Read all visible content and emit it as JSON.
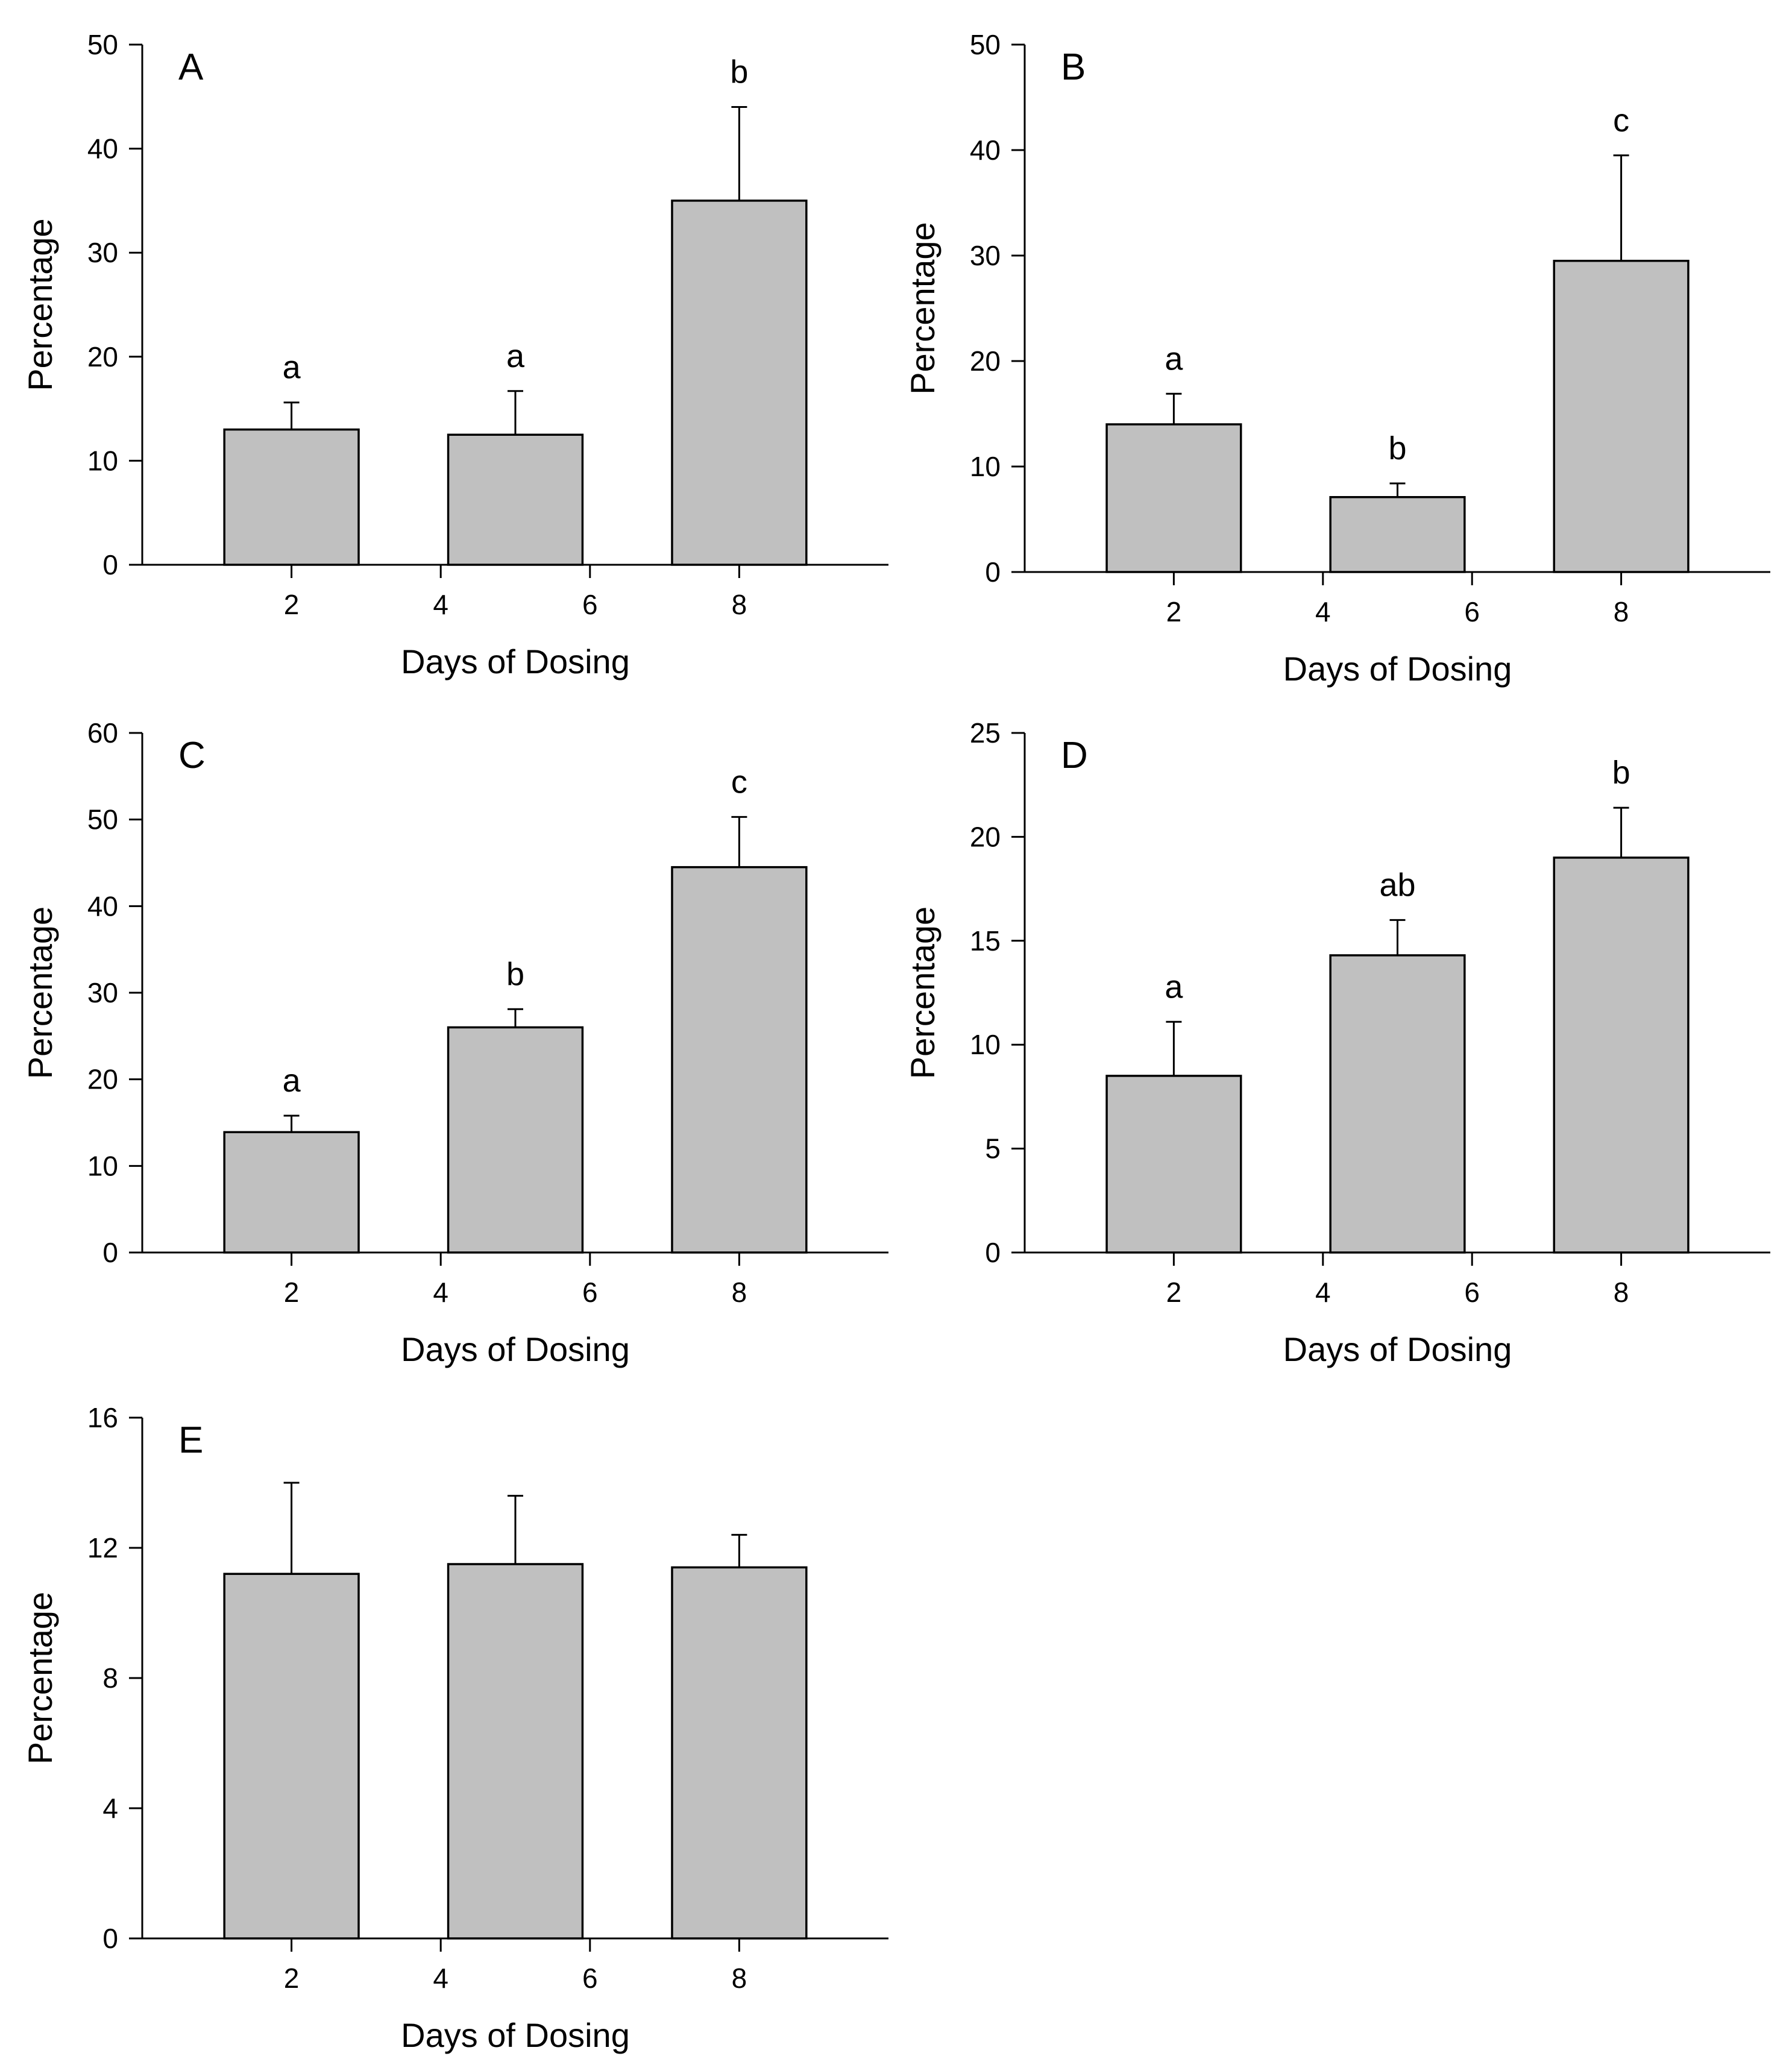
{
  "colors": {
    "bar_fill": "#c0c0c0",
    "stroke": "#000000",
    "background": "#ffffff"
  },
  "chart_data": [
    {
      "type": "bar",
      "panel_label": "A",
      "xlabel": "Days of Dosing",
      "ylabel": "Percentage",
      "xlim": [
        0,
        10
      ],
      "ylim": [
        0,
        50
      ],
      "xticks": [
        2,
        4,
        6,
        8
      ],
      "yticks": [
        0,
        10,
        20,
        30,
        40,
        50
      ],
      "bars": [
        {
          "x": 2,
          "value": 13,
          "error": 2.6,
          "letter": "a"
        },
        {
          "x": 5,
          "value": 12.5,
          "error": 4.2,
          "letter": "a"
        },
        {
          "x": 8,
          "value": 35,
          "error": 9,
          "letter": "b"
        }
      ]
    },
    {
      "type": "bar",
      "panel_label": "B",
      "xlabel": "Days of Dosing",
      "ylabel": "Percentage",
      "xlim": [
        0,
        10
      ],
      "ylim": [
        0,
        50
      ],
      "xticks": [
        2,
        4,
        6,
        8
      ],
      "yticks": [
        0,
        10,
        20,
        30,
        40,
        50
      ],
      "bars": [
        {
          "x": 2,
          "value": 14,
          "error": 2.9,
          "letter": "a"
        },
        {
          "x": 5,
          "value": 7.1,
          "error": 1.3,
          "letter": "b"
        },
        {
          "x": 8,
          "value": 29.5,
          "error": 10,
          "letter": "c"
        }
      ]
    },
    {
      "type": "bar",
      "panel_label": "C",
      "xlabel": "Days of Dosing",
      "ylabel": "Percentage",
      "xlim": [
        0,
        10
      ],
      "ylim": [
        0,
        60
      ],
      "xticks": [
        2,
        4,
        6,
        8
      ],
      "yticks": [
        0,
        10,
        20,
        30,
        40,
        50,
        60
      ],
      "bars": [
        {
          "x": 2,
          "value": 13.9,
          "error": 1.9,
          "letter": "a"
        },
        {
          "x": 5,
          "value": 26,
          "error": 2.1,
          "letter": "b"
        },
        {
          "x": 8,
          "value": 44.5,
          "error": 5.8,
          "letter": "c"
        }
      ]
    },
    {
      "type": "bar",
      "panel_label": "D",
      "xlabel": "Days of Dosing",
      "ylabel": "Percentage",
      "xlim": [
        0,
        10
      ],
      "ylim": [
        0,
        25
      ],
      "xticks": [
        2,
        4,
        6,
        8
      ],
      "yticks": [
        0,
        5,
        10,
        15,
        20,
        25
      ],
      "bars": [
        {
          "x": 2,
          "value": 8.5,
          "error": 2.6,
          "letter": "a"
        },
        {
          "x": 5,
          "value": 14.3,
          "error": 1.7,
          "letter": "ab"
        },
        {
          "x": 8,
          "value": 19,
          "error": 2.4,
          "letter": "b"
        }
      ]
    },
    {
      "type": "bar",
      "panel_label": "E",
      "xlabel": "Days of Dosing",
      "ylabel": "Percentage",
      "xlim": [
        0,
        10
      ],
      "ylim": [
        0,
        16
      ],
      "xticks": [
        2,
        4,
        6,
        8
      ],
      "yticks": [
        0,
        4,
        8,
        12,
        16
      ],
      "bars": [
        {
          "x": 2,
          "value": 11.2,
          "error": 2.8,
          "letter": ""
        },
        {
          "x": 5,
          "value": 11.5,
          "error": 2.1,
          "letter": ""
        },
        {
          "x": 8,
          "value": 11.4,
          "error": 1.0,
          "letter": ""
        }
      ]
    }
  ]
}
